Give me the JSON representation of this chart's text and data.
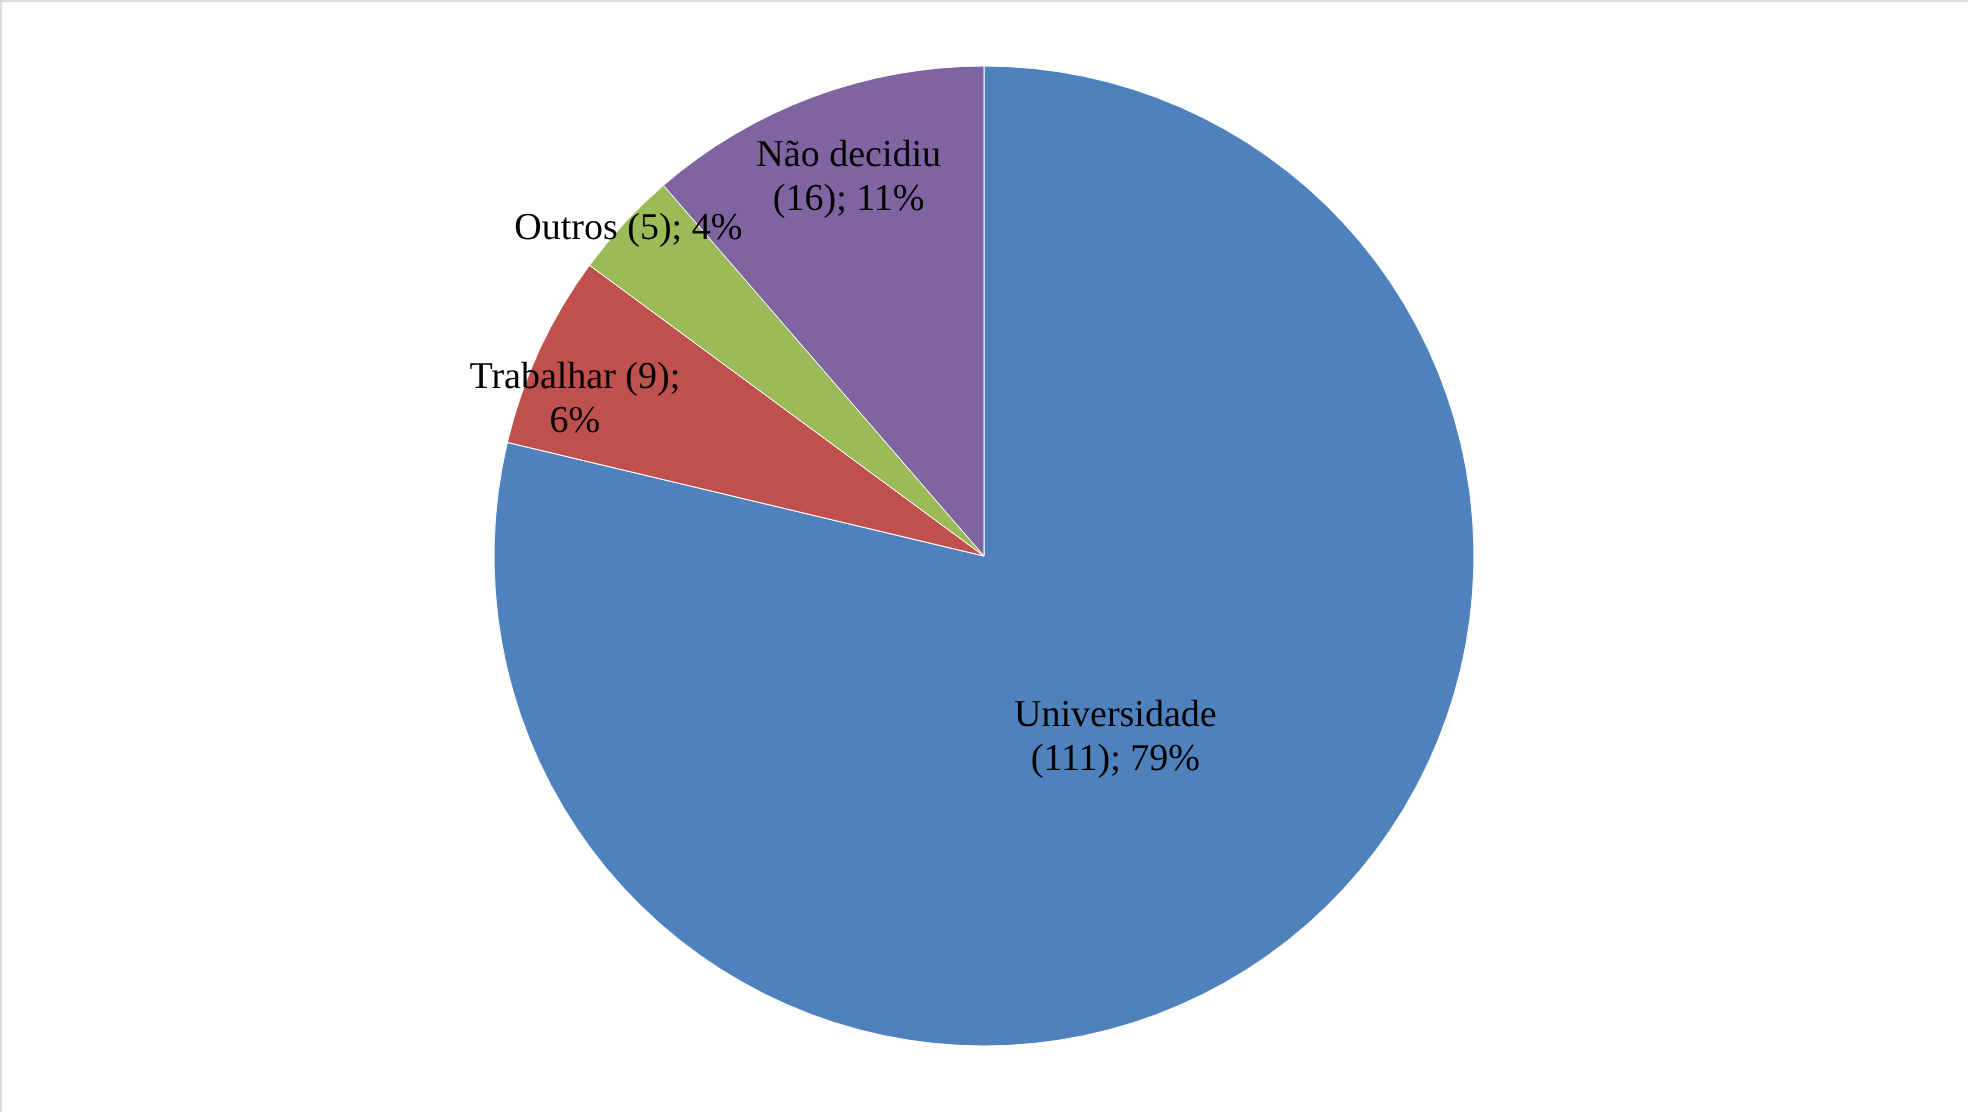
{
  "chart_data": {
    "type": "pie",
    "categories": [
      "Universidade",
      "Trabalhar",
      "Outros",
      "Não decidiu"
    ],
    "values": [
      111,
      9,
      5,
      16
    ],
    "colors": [
      "#4f81bd",
      "#c0504d",
      "#9bbb59",
      "#8064a2"
    ],
    "value_labels": [
      "(111); 79%",
      "(9); 6%",
      "(5); 4%",
      "(16); 11%"
    ]
  }
}
